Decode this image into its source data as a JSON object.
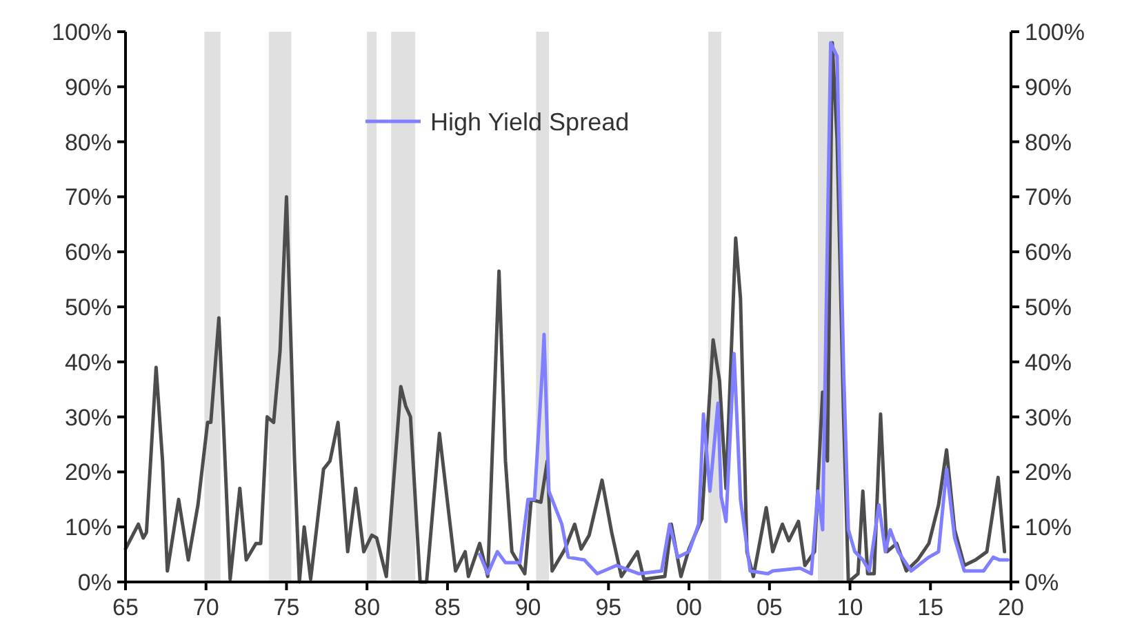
{
  "chart_data": {
    "type": "line",
    "x": [
      1965.0,
      1965.8,
      1966.1,
      1966.3,
      1966.9,
      1967.3,
      1967.6,
      1968.3,
      1968.9,
      1969.5,
      1970.1,
      1970.3,
      1970.8,
      1971.5,
      1972.1,
      1972.5,
      1973.1,
      1973.4,
      1973.8,
      1974.2,
      1974.6,
      1975.0,
      1975.5,
      1975.8,
      1976.1,
      1976.5,
      1977.3,
      1977.7,
      1978.2,
      1978.8,
      1979.3,
      1979.8,
      1980.3,
      1980.6,
      1981.2,
      1982.1,
      1982.4,
      1982.7,
      1983.3,
      1983.7,
      1984.5,
      1985.5,
      1986.1,
      1986.3,
      1987.0,
      1987.5,
      1988.2,
      1988.6,
      1989.0,
      1989.8,
      1990.2,
      1990.8,
      1991.2,
      1991.5,
      1992.3,
      1992.9,
      1993.3,
      1993.8,
      1994.6,
      1995.2,
      1995.8,
      1996.8,
      1997.2,
      1998.5,
      1998.9,
      1999.5,
      2000.0,
      2000.8,
      2001.5,
      2001.9,
      2002.3,
      2002.9,
      2003.2,
      2003.6,
      2004.0,
      2004.8,
      2005.2,
      2005.8,
      2006.2,
      2006.8,
      2007.2,
      2007.8,
      2008.3,
      2008.6,
      2008.9,
      2009.2,
      2009.6,
      2009.9,
      2010.5,
      2010.8,
      2011.1,
      2011.5,
      2011.9,
      2012.3,
      2012.9,
      2013.5,
      2014.2,
      2014.9,
      2015.5,
      2016.0,
      2016.5,
      2017.1,
      2017.8,
      2018.5,
      2019.2,
      2019.6
    ],
    "series": [
      {
        "color": "#4d4d4d",
        "values": [
          6,
          10.5,
          8,
          9,
          39,
          22,
          2,
          15,
          4,
          14,
          29,
          29,
          48,
          0.5,
          17,
          4,
          7,
          7,
          30,
          29,
          42,
          70,
          22,
          0,
          10,
          0.5,
          20.5,
          22,
          29,
          5.5,
          17,
          5.5,
          8.5,
          8,
          1,
          35.5,
          32,
          30,
          0,
          0,
          27,
          2,
          5.5,
          1,
          7,
          1,
          56.5,
          22,
          5.5,
          1.5,
          15,
          14.5,
          22,
          2,
          6,
          10.5,
          6,
          8.5,
          18.5,
          9,
          1,
          5.5,
          0.5,
          1,
          10.5,
          1,
          6,
          11.5,
          44,
          36.5,
          17,
          62.5,
          51.5,
          5.5,
          1,
          13.5,
          5.5,
          10.5,
          7.5,
          11,
          3,
          5.5,
          34.5,
          22,
          98,
          80.5,
          30.5,
          0,
          1.5,
          16.5,
          1.5,
          1.5,
          30.5,
          5.5,
          7,
          2,
          4,
          7,
          14,
          24,
          9.5,
          3,
          4,
          5.5,
          19,
          5.5
        ]
      },
      {
        "name": "High Yield Spread",
        "color": "#7f7fff",
        "x": [
          1987.0,
          1987.5,
          1988.1,
          1988.6,
          1989.5,
          1990.0,
          1990.4,
          1990.9,
          1991.0,
          1991.3,
          1992.1,
          1992.5,
          1993.5,
          1994.3,
          1995.5,
          1996.9,
          1998.3,
          1998.8,
          1999.3,
          2000.0,
          2000.6,
          2000.9,
          2001.3,
          2001.8,
          2002.0,
          2002.3,
          2002.8,
          2003.2,
          2003.8,
          2004.9,
          2005.2,
          2006.9,
          2007.6,
          2008.0,
          2008.3,
          2008.8,
          2009.2,
          2009.6,
          2009.9,
          2010.3,
          2010.8,
          2011.2,
          2011.8,
          2012.2,
          2012.5,
          2013.0,
          2013.8,
          2014.9,
          2015.5,
          2016.0,
          2016.5,
          2017.1,
          2018.3,
          2018.9,
          2019.3,
          2019.8
        ],
        "values": [
          5,
          1.5,
          5.5,
          3.5,
          3.5,
          15,
          15,
          39,
          45,
          16.5,
          10.5,
          4.5,
          4,
          1.5,
          3,
          1.5,
          2,
          10.5,
          4.5,
          5.5,
          10.5,
          30.5,
          16.5,
          32.5,
          15.5,
          11,
          41.5,
          15,
          2,
          1.5,
          2,
          2.5,
          1.5,
          16.5,
          9.5,
          98,
          95.5,
          39,
          9.5,
          5.5,
          4,
          2,
          14,
          5.5,
          9.5,
          5.5,
          2,
          4.5,
          5.5,
          20.5,
          8,
          2,
          2,
          4.5,
          4,
          4
        ]
      }
    ],
    "xlim": [
      1965,
      2020
    ],
    "xticks": [
      {
        "value": 1965,
        "label": "65"
      },
      {
        "value": 1970,
        "label": "70"
      },
      {
        "value": 1975,
        "label": "75"
      },
      {
        "value": 1980,
        "label": "80"
      },
      {
        "value": 1985,
        "label": "85"
      },
      {
        "value": 1990,
        "label": "90"
      },
      {
        "value": 1995,
        "label": "95"
      },
      {
        "value": 2000,
        "label": "00"
      },
      {
        "value": 2005,
        "label": "05"
      },
      {
        "value": 2010,
        "label": "10"
      },
      {
        "value": 2015,
        "label": "15"
      },
      {
        "value": 2020,
        "label": "20"
      }
    ],
    "ylim": [
      0,
      100
    ],
    "yticks": [
      {
        "value": 0,
        "label": "0%"
      },
      {
        "value": 10,
        "label": "10%"
      },
      {
        "value": 20,
        "label": "20%"
      },
      {
        "value": 30,
        "label": "30%"
      },
      {
        "value": 40,
        "label": "40%"
      },
      {
        "value": 50,
        "label": "50%"
      },
      {
        "value": 60,
        "label": "60%"
      },
      {
        "value": 70,
        "label": "70%"
      },
      {
        "value": 80,
        "label": "80%"
      },
      {
        "value": 90,
        "label": "90%"
      },
      {
        "value": 100,
        "label": "100%"
      }
    ],
    "y2lim": [
      0,
      100
    ],
    "y2ticks": [
      {
        "value": 0,
        "label": "0%"
      },
      {
        "value": 10,
        "label": "10%"
      },
      {
        "value": 20,
        "label": "20%"
      },
      {
        "value": 30,
        "label": "30%"
      },
      {
        "value": 40,
        "label": "40%"
      },
      {
        "value": 50,
        "label": "50%"
      },
      {
        "value": 60,
        "label": "60%"
      },
      {
        "value": 70,
        "label": "70%"
      },
      {
        "value": 80,
        "label": "80%"
      },
      {
        "value": 90,
        "label": "90%"
      },
      {
        "value": 100,
        "label": "100%"
      }
    ],
    "bands": [
      {
        "axis": "x",
        "from": 1969.9,
        "to": 1970.9,
        "color": "#e0e0e0"
      },
      {
        "axis": "x",
        "from": 1973.9,
        "to": 1975.3,
        "color": "#e0e0e0"
      },
      {
        "axis": "x",
        "from": 1980.0,
        "to": 1980.6,
        "color": "#e0e0e0"
      },
      {
        "axis": "x",
        "from": 1981.5,
        "to": 1983.0,
        "color": "#e0e0e0"
      },
      {
        "axis": "x",
        "from": 1990.5,
        "to": 1991.3,
        "color": "#e0e0e0"
      },
      {
        "axis": "x",
        "from": 2001.2,
        "to": 2002.0,
        "color": "#e0e0e0"
      },
      {
        "axis": "x",
        "from": 2008.0,
        "to": 2009.6,
        "color": "#e0e0e0"
      }
    ],
    "grid": false,
    "legend": "top",
    "marker": "none",
    "line_style": "solid"
  }
}
